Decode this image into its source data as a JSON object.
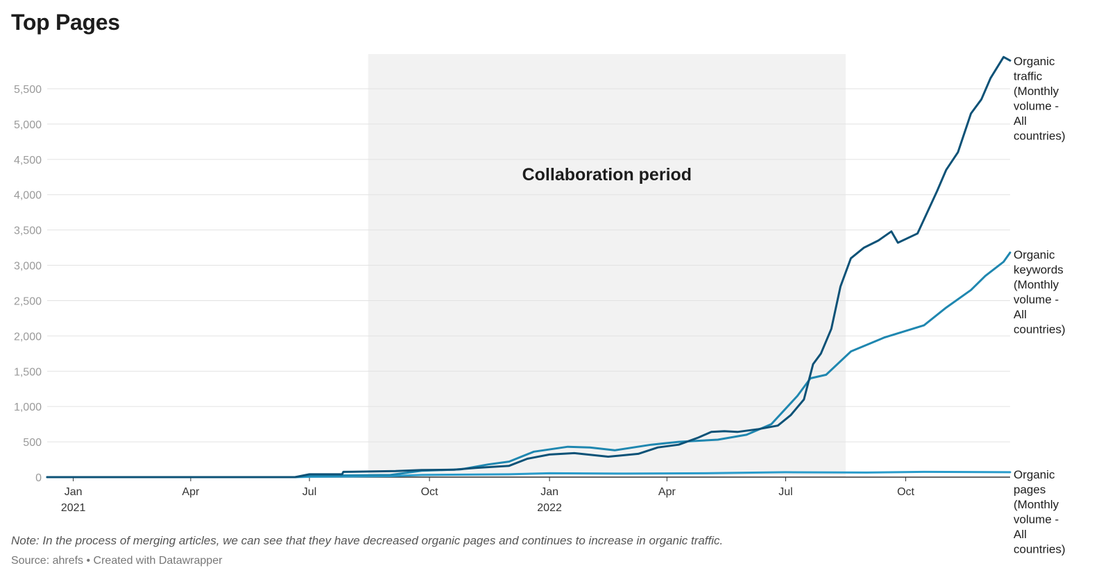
{
  "title": "Top Pages",
  "note": "Note: In the process of merging articles, we can see that they have decreased organic pages and continues to increase in organic traffic.",
  "source": "Source: ahrefs • Created with Datawrapper",
  "colors": {
    "traffic": "#0d5277",
    "keywords": "#1f87b0",
    "pages": "#2a9ccb",
    "shade": "#f2f2f2",
    "grid": "#e2e2e2"
  },
  "chart_data": {
    "type": "line",
    "title": "Top Pages",
    "xlabel": "",
    "ylabel": "",
    "ylim": [
      0,
      5700
    ],
    "xlim": [
      "2020-12-12",
      "2022-12-20"
    ],
    "yticks": [
      0,
      500,
      1000,
      1500,
      2000,
      2500,
      3000,
      3500,
      4000,
      4500,
      5000,
      5500
    ],
    "ytick_labels": [
      "0",
      "500",
      "1,000",
      "1,500",
      "2,000",
      "2,500",
      "3,000",
      "3,500",
      "4,000",
      "4,500",
      "5,000",
      "5,500"
    ],
    "xticks": [
      {
        "date": "2021-01-01",
        "label": "Jan",
        "year": "2021"
      },
      {
        "date": "2021-04-01",
        "label": "Apr",
        "year": ""
      },
      {
        "date": "2021-07-01",
        "label": "Jul",
        "year": ""
      },
      {
        "date": "2021-10-01",
        "label": "Oct",
        "year": ""
      },
      {
        "date": "2022-01-01",
        "label": "Jan",
        "year": "2022"
      },
      {
        "date": "2022-04-01",
        "label": "Apr",
        "year": ""
      },
      {
        "date": "2022-07-01",
        "label": "Jul",
        "year": ""
      },
      {
        "date": "2022-10-01",
        "label": "Oct",
        "year": ""
      }
    ],
    "grid": true,
    "annotation": {
      "label": "Collaboration period",
      "start": "2021-08-15",
      "end": "2022-08-16"
    },
    "series": [
      {
        "name": "Organic traffic (Monthly volume - All countries)",
        "label_lines": [
          "Organic",
          "traffic",
          "(Monthly",
          "volume -",
          "All",
          "countries)"
        ],
        "points": [
          [
            "2020-12-12",
            0
          ],
          [
            "2021-06-20",
            0
          ],
          [
            "2021-07-01",
            40
          ],
          [
            "2021-07-26",
            40
          ],
          [
            "2021-07-27",
            75
          ],
          [
            "2021-09-05",
            85
          ],
          [
            "2021-09-25",
            100
          ],
          [
            "2021-10-20",
            105
          ],
          [
            "2021-11-05",
            130
          ],
          [
            "2021-12-01",
            160
          ],
          [
            "2021-12-15",
            260
          ],
          [
            "2022-01-01",
            320
          ],
          [
            "2022-01-20",
            340
          ],
          [
            "2022-02-15",
            290
          ],
          [
            "2022-03-10",
            330
          ],
          [
            "2022-03-25",
            420
          ],
          [
            "2022-04-10",
            460
          ],
          [
            "2022-04-25",
            560
          ],
          [
            "2022-05-05",
            640
          ],
          [
            "2022-05-15",
            650
          ],
          [
            "2022-05-25",
            640
          ],
          [
            "2022-06-10",
            680
          ],
          [
            "2022-06-25",
            730
          ],
          [
            "2022-07-05",
            880
          ],
          [
            "2022-07-15",
            1100
          ],
          [
            "2022-07-22",
            1600
          ],
          [
            "2022-07-28",
            1750
          ],
          [
            "2022-08-05",
            2100
          ],
          [
            "2022-08-12",
            2700
          ],
          [
            "2022-08-20",
            3100
          ],
          [
            "2022-08-30",
            3250
          ],
          [
            "2022-09-10",
            3350
          ],
          [
            "2022-09-20",
            3480
          ],
          [
            "2022-09-25",
            3320
          ],
          [
            "2022-10-10",
            3450
          ],
          [
            "2022-10-25",
            4050
          ],
          [
            "2022-11-01",
            4350
          ],
          [
            "2022-11-10",
            4600
          ],
          [
            "2022-11-20",
            5150
          ],
          [
            "2022-11-28",
            5350
          ],
          [
            "2022-12-05",
            5650
          ],
          [
            "2022-12-15",
            5950
          ],
          [
            "2022-12-20",
            5900
          ]
        ]
      },
      {
        "name": "Organic keywords (Monthly volume - All countries)",
        "label_lines": [
          "Organic",
          "keywords",
          "(Monthly",
          "volume -",
          "All",
          "countries)"
        ],
        "points": [
          [
            "2020-12-12",
            0
          ],
          [
            "2021-06-20",
            0
          ],
          [
            "2021-07-01",
            20
          ],
          [
            "2021-09-01",
            30
          ],
          [
            "2021-09-25",
            90
          ],
          [
            "2021-10-25",
            110
          ],
          [
            "2021-11-15",
            180
          ],
          [
            "2021-12-01",
            220
          ],
          [
            "2021-12-20",
            360
          ],
          [
            "2022-01-15",
            430
          ],
          [
            "2022-02-01",
            420
          ],
          [
            "2022-02-20",
            380
          ],
          [
            "2022-03-20",
            460
          ],
          [
            "2022-04-10",
            500
          ],
          [
            "2022-05-10",
            530
          ],
          [
            "2022-06-01",
            600
          ],
          [
            "2022-06-20",
            750
          ],
          [
            "2022-07-10",
            1150
          ],
          [
            "2022-07-20",
            1400
          ],
          [
            "2022-08-01",
            1450
          ],
          [
            "2022-08-20",
            1780
          ],
          [
            "2022-09-15",
            1980
          ],
          [
            "2022-10-15",
            2150
          ],
          [
            "2022-11-01",
            2400
          ],
          [
            "2022-11-20",
            2650
          ],
          [
            "2022-12-01",
            2850
          ],
          [
            "2022-12-15",
            3050
          ],
          [
            "2022-12-20",
            3180
          ]
        ]
      },
      {
        "name": "Organic pages (Monthly volume - All countries)",
        "label_lines": [
          "Organic",
          "pages",
          "(Monthly",
          "volume -",
          "All",
          "countries)"
        ],
        "points": [
          [
            "2020-12-12",
            0
          ],
          [
            "2021-06-20",
            0
          ],
          [
            "2021-07-01",
            5
          ],
          [
            "2021-09-01",
            15
          ],
          [
            "2021-09-25",
            30
          ],
          [
            "2021-12-01",
            40
          ],
          [
            "2022-01-01",
            55
          ],
          [
            "2022-03-01",
            50
          ],
          [
            "2022-05-01",
            55
          ],
          [
            "2022-07-01",
            70
          ],
          [
            "2022-09-01",
            65
          ],
          [
            "2022-10-15",
            75
          ],
          [
            "2022-12-20",
            70
          ]
        ]
      }
    ]
  }
}
